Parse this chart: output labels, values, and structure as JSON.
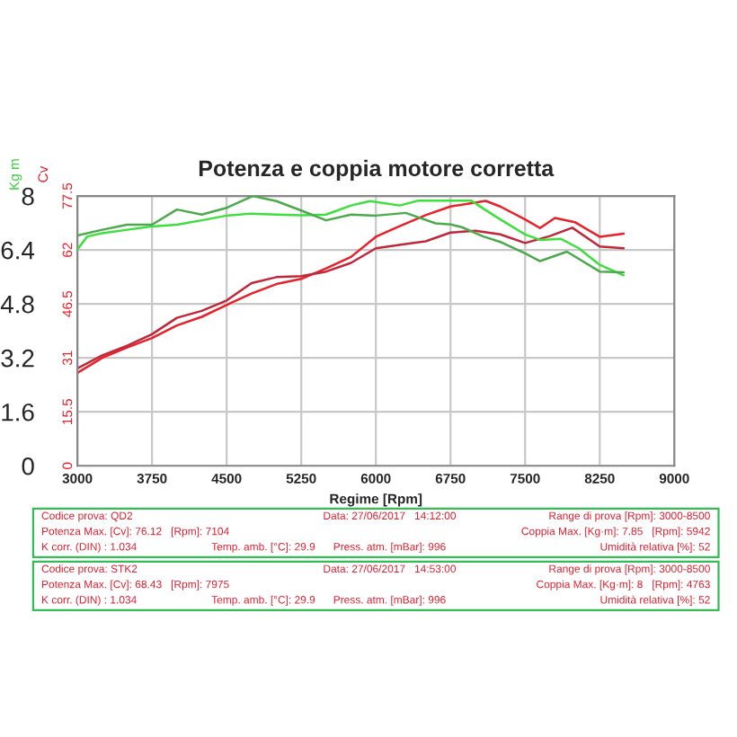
{
  "chart_data": {
    "type": "line",
    "title": "Potenza e coppia motore corretta",
    "xlabel": "Regime [Rpm]",
    "ylabel": "Cv",
    "y2label": "Kg m",
    "xlim": [
      3000,
      9000
    ],
    "xticks": [
      3000,
      3750,
      4500,
      5250,
      6000,
      6750,
      7500,
      8250,
      9000
    ],
    "ylim": [
      0,
      77.5
    ],
    "yticks": [
      0,
      15.5,
      31,
      46.5,
      62,
      77.5
    ],
    "y2lim": [
      0,
      8
    ],
    "y2ticks": [
      0,
      1.6,
      3.2,
      4.8,
      6.4,
      8
    ],
    "grid": true,
    "marker": "none",
    "line_style": "solid",
    "series": [
      {
        "color": "#e8202a",
        "x": [
          3000,
          3250,
          3500,
          3750,
          4000,
          4250,
          4500,
          4750,
          5000,
          5250,
          5500,
          5750,
          6000,
          6250,
          6500,
          6750,
          7104,
          7250,
          7500,
          7650,
          7800,
          8000,
          8250,
          8490
        ],
        "values": [
          26.7,
          31.0,
          34.0,
          36.7,
          40.3,
          42.8,
          46.2,
          49.5,
          52.2,
          53.7,
          56.7,
          60.0,
          65.8,
          69.0,
          72.0,
          74.5,
          76.1,
          74.5,
          70.8,
          68.3,
          71.2,
          70.0,
          65.8,
          66.7
        ]
      },
      {
        "color": "#c0283a",
        "x": [
          3000,
          3250,
          3500,
          3750,
          4000,
          4250,
          4500,
          4750,
          5000,
          5250,
          5500,
          5750,
          6000,
          6250,
          6500,
          6750,
          7000,
          7250,
          7500,
          7750,
          7975,
          8250,
          8490
        ],
        "values": [
          28.0,
          31.7,
          34.5,
          37.8,
          42.5,
          44.5,
          47.5,
          52.5,
          54.2,
          54.5,
          55.8,
          58.3,
          62.5,
          63.5,
          64.5,
          67.0,
          67.5,
          66.5,
          64.0,
          66.0,
          68.4,
          63.0,
          62.5
        ]
      },
      {
        "color": "#3ce03c",
        "axis": "y2",
        "x": [
          3000,
          3100,
          3250,
          3500,
          3750,
          4000,
          4250,
          4500,
          4750,
          5000,
          5250,
          5500,
          5750,
          5942,
          6240,
          6420,
          6750,
          6960,
          7200,
          7500,
          7650,
          7860,
          8040,
          8250,
          8490
        ],
        "values": [
          6.42,
          6.8,
          6.9,
          7.0,
          7.1,
          7.15,
          7.28,
          7.42,
          7.48,
          7.45,
          7.43,
          7.45,
          7.72,
          7.85,
          7.72,
          7.86,
          7.86,
          7.86,
          7.4,
          6.86,
          6.7,
          6.73,
          6.45,
          5.96,
          5.65
        ]
      },
      {
        "color": "#4caa4c",
        "axis": "y2",
        "x": [
          3000,
          3250,
          3500,
          3750,
          4000,
          4250,
          4500,
          4763,
          5000,
          5250,
          5500,
          5750,
          6000,
          6300,
          6600,
          6750,
          6870,
          7080,
          7260,
          7500,
          7650,
          7920,
          8250,
          8490
        ],
        "values": [
          6.83,
          7.0,
          7.15,
          7.15,
          7.6,
          7.45,
          7.65,
          8.0,
          7.85,
          7.57,
          7.28,
          7.45,
          7.42,
          7.5,
          7.19,
          7.16,
          7.07,
          6.8,
          6.63,
          6.3,
          6.07,
          6.35,
          5.76,
          5.74
        ]
      }
    ],
    "annotations": [
      "Codice prova: QD2",
      "Data: 27/06/2017   14:12:00",
      "Range di prova [Rpm]: 3000-8500",
      "Potenza Max. [Cv]: 76.12   [Rpm]: 7104",
      "Coppia Max. [Kg·m]: 7.85   [Rpm]: 5942",
      "K corr. (DIN) : 1.034",
      "Temp. amb. [°C]: 29.9",
      "Press. atm. [mBar]: 996",
      "Umidità relativa [%]: 52",
      "Codice prova: STK2",
      "Data: 27/06/2017   14:53:00",
      "Range di prova [Rpm]: 3000-8500",
      "Potenza Max. [Cv]: 68.43   [Rpm]: 7975",
      "Coppia Max. [Kg·m]: 8   [Rpm]: 4763",
      "K corr. (DIN) : 1.034",
      "Temp. amb. [°C]: 29.9",
      "Press. atm. [mBar]: 996",
      "Umidità relativa [%]: 52"
    ]
  }
}
